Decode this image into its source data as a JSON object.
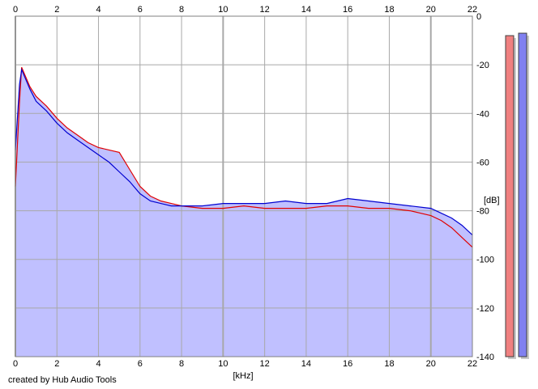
{
  "credit_text": "created by Hub Audio Tools",
  "chart_data": {
    "type": "area",
    "xlabel": "[kHz]",
    "ylabel": "[dB]",
    "xlim": [
      0,
      22
    ],
    "ylim": [
      -140,
      0
    ],
    "x_ticks": [
      0,
      2,
      4,
      6,
      8,
      10,
      12,
      14,
      16,
      18,
      20,
      22
    ],
    "y_ticks": [
      0,
      -20,
      -40,
      -60,
      -80,
      -100,
      -120,
      -140
    ],
    "y_tick_labels": [
      "0",
      "-20",
      "-40",
      "-60",
      "-80",
      "-100",
      "-120",
      "-140"
    ],
    "grid": true,
    "x_ticks_on_top_and_bottom": true,
    "series": [
      {
        "color": "#e00000",
        "x": [
          0,
          0.2,
          0.3,
          0.5,
          0.7,
          1,
          1.5,
          2,
          2.5,
          3,
          3.5,
          4,
          4.5,
          5,
          5.5,
          6,
          6.5,
          7,
          7.5,
          8,
          9,
          10,
          11,
          12,
          13,
          14,
          15,
          16,
          17,
          18,
          19,
          20,
          20.5,
          21,
          21.5,
          22
        ],
        "y": [
          -70,
          -35,
          -21,
          -25,
          -29,
          -33,
          -37,
          -42,
          -46,
          -49,
          -52,
          -54,
          -55,
          -56,
          -63,
          -70,
          -74,
          -76,
          -77,
          -78,
          -79,
          -79,
          -78,
          -79,
          -79,
          -79,
          -78,
          -78,
          -79,
          -79,
          -80,
          -82,
          -84,
          -87,
          -91,
          -95
        ]
      },
      {
        "color": "#0000d0",
        "x": [
          0,
          0.2,
          0.3,
          0.5,
          0.7,
          1,
          1.5,
          2,
          2.5,
          3,
          3.5,
          4,
          4.5,
          5,
          5.5,
          6,
          6.5,
          7,
          7.5,
          8,
          9,
          10,
          11,
          12,
          13,
          14,
          15,
          16,
          17,
          18,
          19,
          20,
          20.5,
          21,
          21.5,
          22
        ],
        "y": [
          -55,
          -28,
          -22,
          -26,
          -30,
          -35,
          -39,
          -44,
          -48,
          -51,
          -54,
          -57,
          -60,
          -64,
          -68,
          -73,
          -76,
          -77,
          -78,
          -78,
          -78,
          -77,
          -77,
          -77,
          -76,
          -77,
          -77,
          -75,
          -76,
          -77,
          -78,
          -79,
          -81,
          -83,
          -86,
          -90
        ]
      }
    ],
    "level_meters": {
      "min": -140,
      "max": 0,
      "left": {
        "color": "#f08080",
        "value": -8
      },
      "right": {
        "color": "#8080f0",
        "value": -7
      }
    },
    "fill_color": "#c0c0ff"
  }
}
